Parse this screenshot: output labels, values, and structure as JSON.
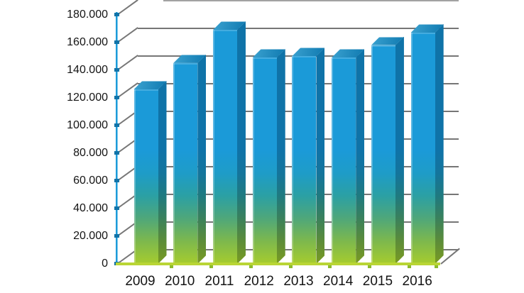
{
  "chart_data": {
    "type": "bar",
    "style": "3d-column",
    "title": "",
    "xlabel": "",
    "ylabel": "",
    "categories": [
      "2009",
      "2010",
      "2011",
      "2012",
      "2013",
      "2014",
      "2015",
      "2016"
    ],
    "values": [
      126000,
      145000,
      169000,
      149000,
      150000,
      149000,
      158000,
      167000
    ],
    "ylim": [
      0,
      180000
    ],
    "ytick_step": 20000,
    "ytick_labels": [
      "0",
      "20.000",
      "40.000",
      "60.000",
      "80.000",
      "100.000",
      "120.000",
      "140.000",
      "160.000",
      "180.000"
    ],
    "number_format": "thousands-dot-separator",
    "grid": true,
    "legend": null,
    "colors": {
      "bar_blue": "#1b9ad8",
      "bar_green_bottom": "#a6cc2e",
      "bar_side_dark": "#0f73a8",
      "bar_top_face": "#1486be",
      "y_axis_line": "#1c9bd9",
      "y_axis_tick": "#1173a8",
      "baseline_green": "#b9d535",
      "baseline_tick": "#8cbc2b",
      "gridline_gray": "#767676",
      "label_color": "#141414",
      "background": "#ffffff"
    }
  }
}
